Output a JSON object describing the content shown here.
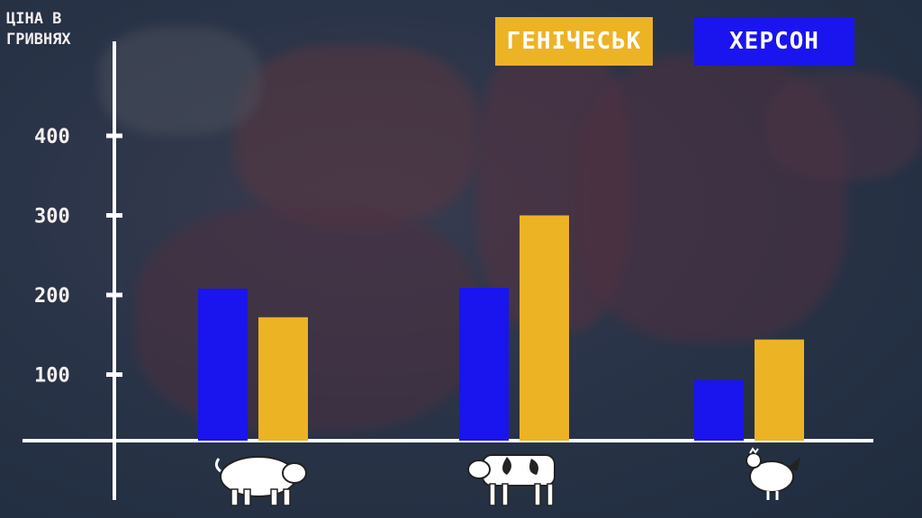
{
  "chart_data": {
    "type": "bar",
    "ylabel": [
      "ЦІНА В",
      "ГРИВНЯХ"
    ],
    "yticks": [
      "100",
      "200",
      "300",
      "400"
    ],
    "categories": [
      "pig-icon",
      "cow-icon",
      "chicken-icon"
    ],
    "series": [
      {
        "name": "ХЕРСОН",
        "color": "#1a14ee",
        "values": [
          208,
          209,
          93
        ]
      },
      {
        "name": "ГЕНІЧЕСЬК",
        "color": "#ecb324",
        "values": [
          172,
          300,
          144
        ]
      }
    ],
    "legend": "top-right",
    "grid": false
  }
}
